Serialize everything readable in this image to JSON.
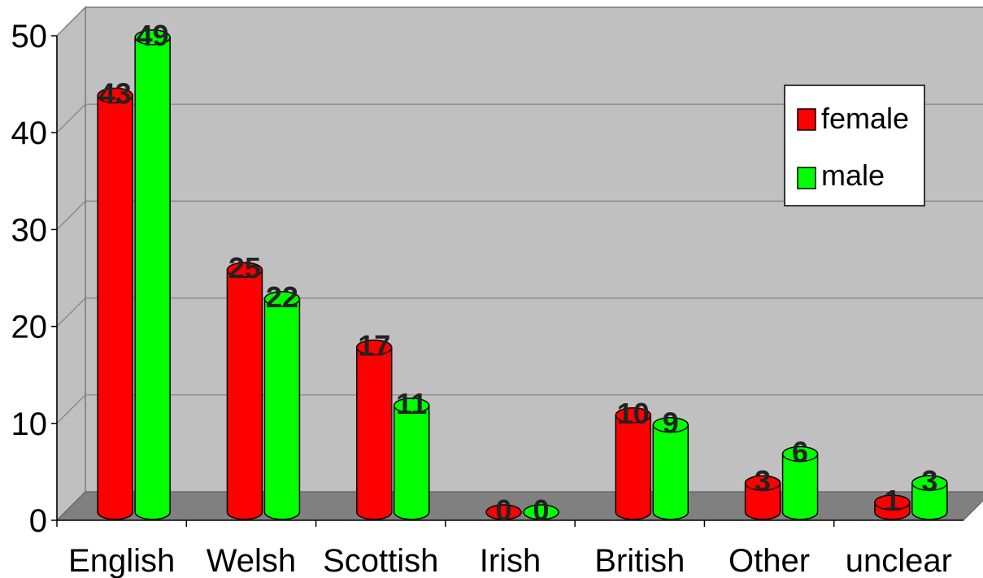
{
  "chart_data": {
    "type": "bar",
    "style": "3d-cylinder",
    "categories": [
      "English",
      "Welsh",
      "Scottish",
      "Irish",
      "British",
      "Other",
      "unclear"
    ],
    "series": [
      {
        "name": "female",
        "color": "#ff0000",
        "values": [
          43,
          25,
          17,
          0,
          10,
          3,
          1
        ]
      },
      {
        "name": "male",
        "color": "#00ff00",
        "values": [
          49,
          22,
          11,
          0,
          9,
          6,
          3
        ]
      }
    ],
    "y_ticks": [
      "0",
      "10",
      "20",
      "30",
      "40",
      "50"
    ],
    "ylim": [
      0,
      50
    ],
    "grid": true,
    "legend_position": "top-right",
    "wall_color": "#c0c0c0",
    "floor_color": "#808080"
  }
}
